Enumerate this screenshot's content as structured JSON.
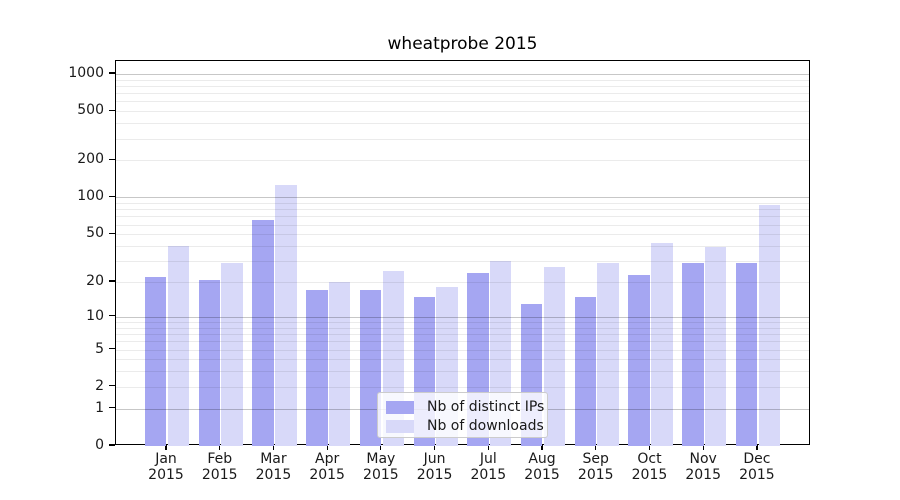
{
  "title": "wheatprobe 2015",
  "chart_data": {
    "type": "bar",
    "title": "wheatprobe 2015",
    "xlabel": "",
    "ylabel": "",
    "yscale": "log1p",
    "ylim": [
      0,
      1000
    ],
    "yticks": [
      0,
      1,
      2,
      5,
      10,
      20,
      50,
      100,
      200,
      500,
      1000
    ],
    "grid": "on",
    "legend_position": "lower-center",
    "year": "2015",
    "categories": [
      "Jan",
      "Feb",
      "Mar",
      "Apr",
      "May",
      "Jun",
      "Jul",
      "Aug",
      "Sep",
      "Oct",
      "Nov",
      "Dec"
    ],
    "series": [
      {
        "name": "Nb of distinct IPs",
        "color": "#a5a6f2",
        "values": [
          22,
          21,
          66,
          17,
          17,
          15,
          24,
          13,
          15,
          23,
          29,
          29
        ]
      },
      {
        "name": "Nb of downloads",
        "color": "#d8d9f9",
        "values": [
          40,
          29,
          127,
          20,
          25,
          18,
          30,
          27,
          29,
          42,
          39,
          86
        ]
      }
    ]
  },
  "colors": {
    "background": "#ffffff",
    "axis": "#000000",
    "text": "#1a1a1a",
    "grid_major": "#c8c8c8",
    "grid_minor": "#ebebeb",
    "legend_border": "#cccccc"
  }
}
